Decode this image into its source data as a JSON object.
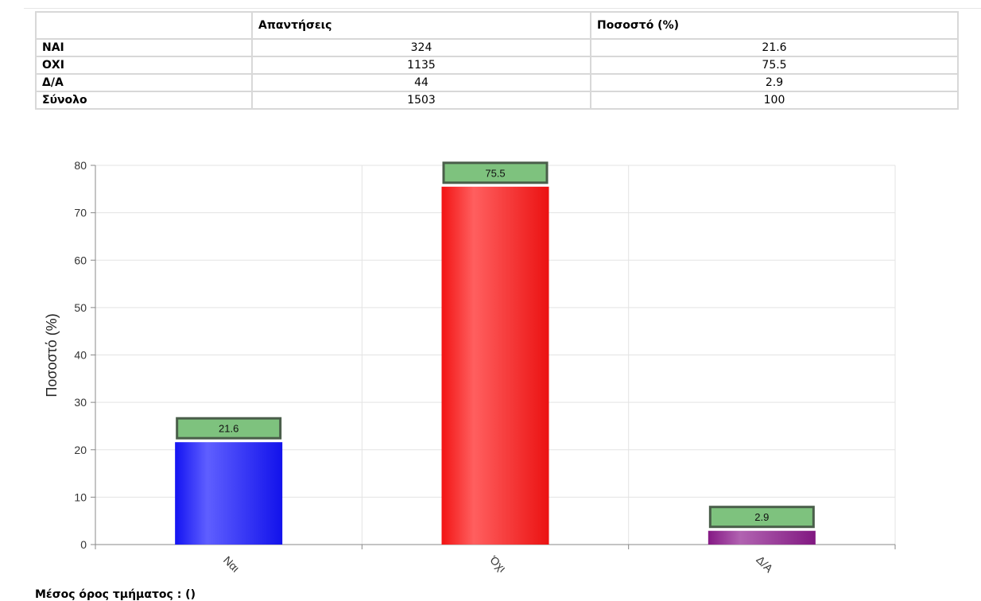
{
  "table": {
    "headers": [
      "",
      "Απαντήσεις",
      "Ποσοστό (%)"
    ],
    "rows": [
      {
        "label": "ΝΑΙ",
        "count": "324",
        "percent": "21.6"
      },
      {
        "label": "ΟΧΙ",
        "count": "1135",
        "percent": "75.5"
      },
      {
        "label": "Δ/Α",
        "count": "44",
        "percent": "2.9"
      },
      {
        "label": "Σύνολο",
        "count": "1503",
        "percent": "100"
      }
    ]
  },
  "chart_data": {
    "type": "bar",
    "categories": [
      "Ναι",
      "Όχι",
      "Δ/Α"
    ],
    "values": [
      21.6,
      75.5,
      2.9
    ],
    "data_labels": [
      "21.6",
      "75.5",
      "2.9"
    ],
    "colors": [
      "#1414ff",
      "#ff1414",
      "#8c1a8c"
    ],
    "label_box_fill": "#7ec27e",
    "label_box_border": "#4a5e4a",
    "ylabel": "Ποσοστό (%)",
    "xlabel": "",
    "ylim": [
      0,
      80
    ],
    "yticks": [
      0,
      10,
      20,
      30,
      40,
      50,
      60,
      70,
      80
    ],
    "grid": true,
    "legend": "none"
  },
  "footer": {
    "label": "Μέσος όρος τμήματος : ()"
  }
}
